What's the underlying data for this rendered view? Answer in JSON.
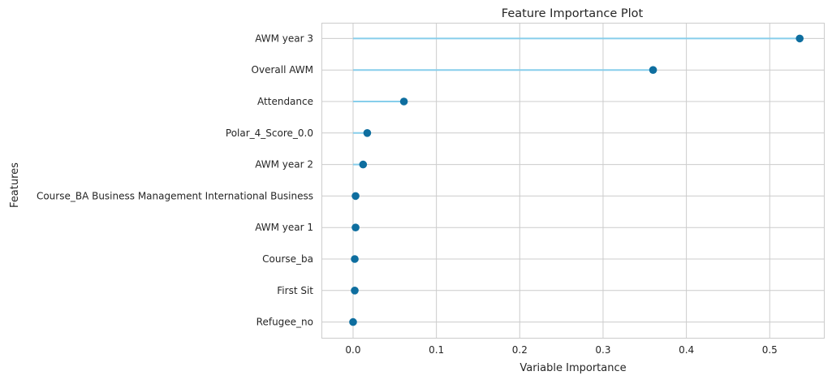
{
  "chart_data": {
    "type": "lollipop",
    "title": "Feature Importance Plot",
    "xlabel": "Variable Importance",
    "ylabel": "Features",
    "xlim": [
      -0.037,
      0.565
    ],
    "xticks": [
      0.0,
      0.1,
      0.2,
      0.3,
      0.4,
      0.5
    ],
    "xtick_labels": [
      "0.0",
      "0.1",
      "0.2",
      "0.3",
      "0.4",
      "0.5"
    ],
    "grid": true,
    "colors": {
      "stem": "#87ceeb",
      "marker": "#0e6e9f",
      "grid": "#cccccc"
    },
    "categories": [
      "AWM year 3",
      "Overall AWM",
      "Attendance",
      "Polar_4_Score_0.0",
      "AWM year 2",
      "Course_BA Business Management International Business",
      "AWM year 1",
      "Course_ba",
      "First Sit",
      "Refugee_no"
    ],
    "values": [
      0.536,
      0.36,
      0.061,
      0.017,
      0.012,
      0.003,
      0.003,
      0.002,
      0.002,
      0.0
    ]
  }
}
